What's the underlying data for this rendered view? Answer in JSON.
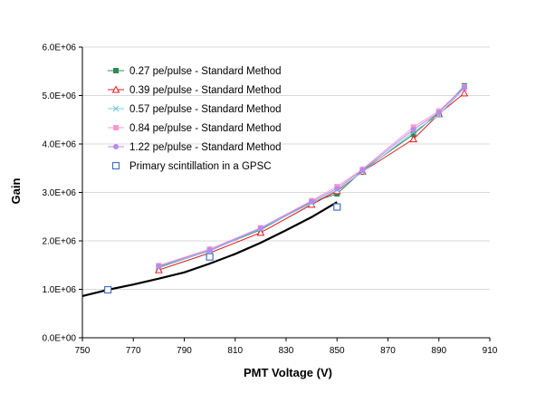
{
  "chart_data": {
    "type": "line",
    "xlabel": "PMT Voltage (V)",
    "ylabel": "Gain",
    "xlim": [
      750,
      910
    ],
    "ylim": [
      0,
      6000000
    ],
    "x_ticks": [
      "750",
      "770",
      "790",
      "810",
      "830",
      "850",
      "870",
      "890",
      "910"
    ],
    "x_tick_values": [
      750,
      770,
      790,
      810,
      830,
      850,
      870,
      890,
      910
    ],
    "y_ticks": [
      "0.0E+00",
      "1.0E+06",
      "2.0E+06",
      "3.0E+06",
      "4.0E+06",
      "5.0E+06",
      "6.0E+06"
    ],
    "y_tick_values": [
      0,
      1000000,
      2000000,
      3000000,
      4000000,
      5000000,
      6000000
    ],
    "grid": "horizontal",
    "legend_position": "top-left",
    "series": [
      {
        "name": "0.27 pe/pulse - Standard Method",
        "color": "#2e8b57",
        "marker": "square-filled",
        "x": [
          780,
          800,
          820,
          840,
          850,
          860,
          880,
          890,
          900
        ],
        "y": [
          1450000,
          1800000,
          2230000,
          2800000,
          2970000,
          3450000,
          4200000,
          4650000,
          5200000
        ]
      },
      {
        "name": "0.39 pe/pulse - Standard Method",
        "color": "#e41a1c",
        "marker": "triangle-open",
        "x": [
          780,
          800,
          820,
          840,
          850,
          860,
          880,
          890,
          900
        ],
        "y": [
          1400000,
          1750000,
          2170000,
          2750000,
          3030000,
          3430000,
          4100000,
          4620000,
          5050000
        ]
      },
      {
        "name": "0.57 pe/pulse - Standard Method",
        "color": "#7ec8e3",
        "marker": "x",
        "x": [
          780,
          800,
          820,
          840,
          850,
          860,
          880,
          890,
          900
        ],
        "y": [
          1470000,
          1790000,
          2250000,
          2780000,
          3050000,
          3420000,
          4250000,
          4600000,
          5150000
        ]
      },
      {
        "name": "0.84 pe/pulse - Standard Method",
        "color": "#ff99cc",
        "marker": "square-filled",
        "x": [
          780,
          800,
          820,
          840,
          850,
          860,
          880,
          890,
          900
        ],
        "y": [
          1490000,
          1830000,
          2270000,
          2830000,
          3120000,
          3480000,
          4350000,
          4680000,
          5180000
        ]
      },
      {
        "name": "1.22 pe/pulse - Standard Method",
        "color": "#b48cf0",
        "marker": "circle-filled",
        "x": [
          780,
          800,
          820,
          840,
          850,
          860,
          880,
          890,
          900
        ],
        "y": [
          1480000,
          1810000,
          2260000,
          2810000,
          3080000,
          3460000,
          4300000,
          4650000,
          5170000
        ]
      },
      {
        "name": "Primary scintillation in a GPSC",
        "color": "#4472c4",
        "marker": "square-open",
        "line": false,
        "x": [
          760,
          800,
          850
        ],
        "y": [
          990000,
          1670000,
          2700000
        ]
      }
    ],
    "fit_curve": {
      "color": "#000000",
      "x": [
        750,
        760,
        770,
        780,
        790,
        800,
        810,
        820,
        830,
        840,
        850
      ],
      "y": [
        860000,
        990000,
        1100000,
        1220000,
        1350000,
        1530000,
        1730000,
        1960000,
        2220000,
        2490000,
        2800000
      ]
    }
  }
}
